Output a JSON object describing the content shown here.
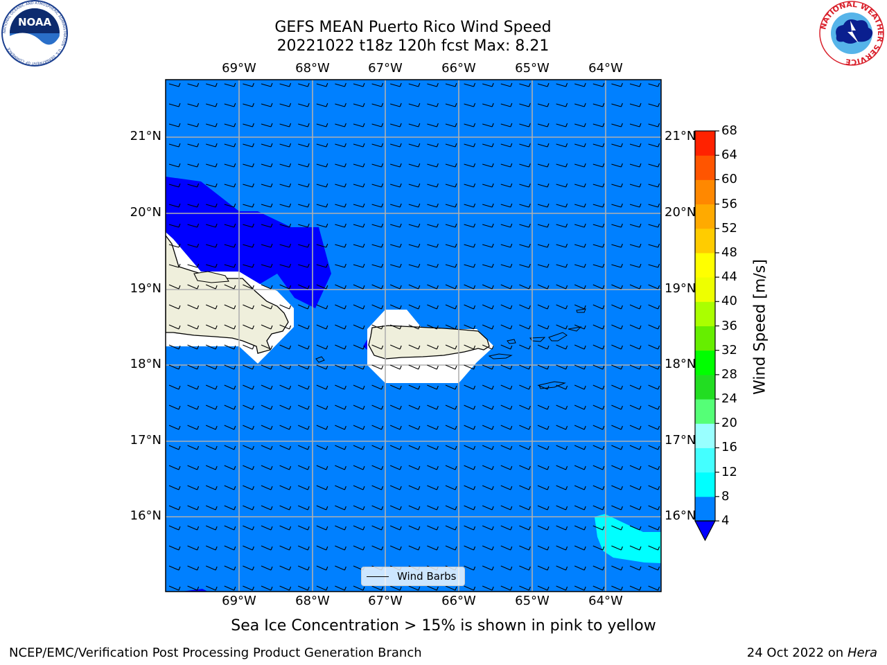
{
  "header": {
    "title_line1": "GEFS MEAN Puerto Rico Wind Speed",
    "title_line2": "20221022 t18z 120h fcst   Max: 8.21"
  },
  "logos": {
    "noaa_text": "NOAA",
    "noaa_ring_text": "NATIONAL OCEANIC AND ATMOSPHERIC ADMINISTRATION · U.S. DEPARTMENT OF COMMERCE",
    "nws_ring_text": "NATIONAL WEATHER SERVICE"
  },
  "map": {
    "lon_labels": [
      "69°W",
      "68°W",
      "67°W",
      "66°W",
      "65°W",
      "64°W"
    ],
    "lat_labels": [
      "21°N",
      "20°N",
      "19°N",
      "18°N",
      "17°N",
      "16°N"
    ],
    "legend_label": "Wind Barbs",
    "colors": {
      "ocean": "#0080ff",
      "low_wind": "#0000ff",
      "cyan_wind": "#00ffff",
      "land": "#efefdc",
      "masked": "#ffffff",
      "grid": "#b0b0b0"
    }
  },
  "colorbar": {
    "label": "Wind Speed [m/s]",
    "ticks": [
      "4",
      "8",
      "12",
      "16",
      "20",
      "24",
      "28",
      "32",
      "36",
      "40",
      "44",
      "48",
      "52",
      "56",
      "60",
      "64",
      "68"
    ],
    "colors": [
      "#0080ff",
      "#00ffff",
      "#44ffff",
      "#99ffff",
      "#55ff77",
      "#22dd22",
      "#00ff00",
      "#66ee00",
      "#aaff00",
      "#ccff00",
      "#eeff00",
      "#ffff00",
      "#ffcc00",
      "#ffaa00",
      "#ff8800",
      "#ff5500",
      "#ff2200",
      "#ff0000"
    ],
    "extend_color": "#0000ff"
  },
  "subtitle": "Sea Ice Concentration > 15% is shown in pink to yellow",
  "footer": {
    "left": "NCEP/EMC/Verification Post Processing Product Generation Branch",
    "right_date": "24 Oct 2022 on ",
    "right_machine": "Hera"
  }
}
